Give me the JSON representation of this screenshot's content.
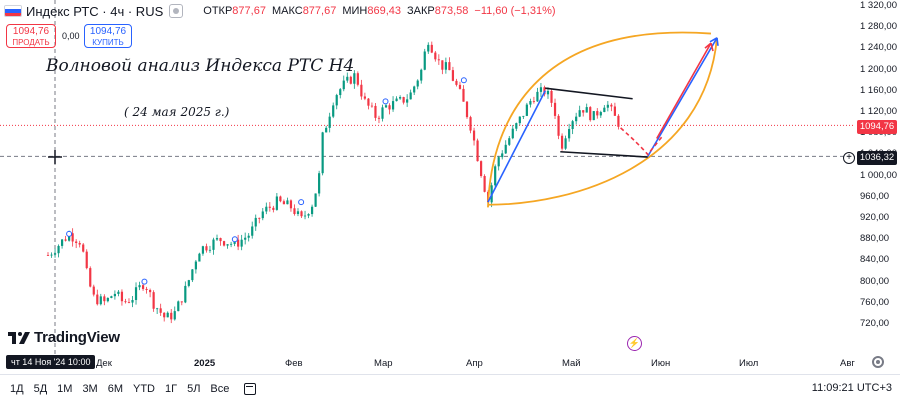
{
  "header": {
    "symbol": "Индекс РТС · 4ч · RUS",
    "open_label": "ОТКР",
    "open_value": "877,67",
    "high_label": "МАКС",
    "high_value": "877,67",
    "low_label": "МИН",
    "low_value": "869,43",
    "close_label": "ЗАКР",
    "close_value": "873,58",
    "change": "−11,60 (−1,31%)",
    "flag_colors": [
      "#ffffff",
      "#2962ff",
      "#f23645"
    ]
  },
  "trade": {
    "sell_price": "1094,76",
    "sell_label": "ПРОДАТЬ",
    "spread": "0,00",
    "buy_price": "1094,76",
    "buy_label": "КУПИТЬ"
  },
  "annotations": {
    "title": "Волновой анализ Индекса РТС Н4",
    "date": "( 24 мая 2025 г.)"
  },
  "logo": {
    "text": "TradingView",
    "icon": "tradingview-logo-icon"
  },
  "price_axis": {
    "ticks": [
      "1 320,00",
      "1 280,00",
      "1 240,00",
      "1 200,00",
      "1 160,00",
      "1 120,00",
      "1 080,00",
      "1 040,00",
      "1 000,00",
      "960,00",
      "920,00",
      "880,00",
      "840,00",
      "800,00",
      "760,00",
      "720,00"
    ],
    "last_price": "1094,76",
    "cursor_price": "1036,32"
  },
  "time_axis": {
    "cursor_label": "чт 14 Ноя '24   10:00",
    "ticks": [
      {
        "label": "Дек",
        "bold": false
      },
      {
        "label": "2025",
        "bold": true
      },
      {
        "label": "Фев",
        "bold": false
      },
      {
        "label": "Мар",
        "bold": false
      },
      {
        "label": "Апр",
        "bold": false
      },
      {
        "label": "Май",
        "bold": false
      },
      {
        "label": "Июн",
        "bold": false
      },
      {
        "label": "Июл",
        "bold": false
      },
      {
        "label": "Авг",
        "bold": false
      }
    ]
  },
  "toolbar": {
    "timeframes": [
      "1Д",
      "5Д",
      "1М",
      "3М",
      "6М",
      "YTD",
      "1Г",
      "5Л",
      "Все"
    ],
    "clock": "11:09:21 UTC+3"
  },
  "colors": {
    "up": "#089981",
    "down": "#f23645",
    "channel": "#f5a623",
    "projection_blue": "#2962ff"
  },
  "chart_data": {
    "type": "candlestick",
    "title": "",
    "y_range": [
      700,
      1330
    ],
    "y_unit": "points",
    "close_path": [
      {
        "x": "2024-11-14",
        "y": 850
      },
      {
        "x": "2024-11-18",
        "y": 872
      },
      {
        "x": "2024-11-21",
        "y": 890
      },
      {
        "x": "2024-11-25",
        "y": 875
      },
      {
        "x": "2024-11-27",
        "y": 810
      },
      {
        "x": "2024-11-29",
        "y": 770
      },
      {
        "x": "2024-12-03",
        "y": 760
      },
      {
        "x": "2024-12-06",
        "y": 780
      },
      {
        "x": "2024-12-09",
        "y": 760
      },
      {
        "x": "2024-12-12",
        "y": 770
      },
      {
        "x": "2024-12-16",
        "y": 800
      },
      {
        "x": "2024-12-19",
        "y": 760
      },
      {
        "x": "2024-12-23",
        "y": 730
      },
      {
        "x": "2024-12-26",
        "y": 740
      },
      {
        "x": "2024-12-30",
        "y": 790
      },
      {
        "x": "2025-01-03",
        "y": 860
      },
      {
        "x": "2025-01-10",
        "y": 880
      },
      {
        "x": "2025-01-15",
        "y": 870
      },
      {
        "x": "2025-01-20",
        "y": 890
      },
      {
        "x": "2025-01-24",
        "y": 930
      },
      {
        "x": "2025-01-29",
        "y": 950
      },
      {
        "x": "2025-02-03",
        "y": 940
      },
      {
        "x": "2025-02-06",
        "y": 915
      },
      {
        "x": "2025-02-10",
        "y": 950
      },
      {
        "x": "2025-02-12",
        "y": 1000
      },
      {
        "x": "2025-02-13",
        "y": 1070
      },
      {
        "x": "2025-02-17",
        "y": 1150
      },
      {
        "x": "2025-02-20",
        "y": 1170
      },
      {
        "x": "2025-02-24",
        "y": 1190
      },
      {
        "x": "2025-02-27",
        "y": 1140
      },
      {
        "x": "2025-03-03",
        "y": 1110
      },
      {
        "x": "2025-03-06",
        "y": 1130
      },
      {
        "x": "2025-03-11",
        "y": 1140
      },
      {
        "x": "2025-03-14",
        "y": 1150
      },
      {
        "x": "2025-03-18",
        "y": 1200
      },
      {
        "x": "2025-03-20",
        "y": 1260
      },
      {
        "x": "2025-03-24",
        "y": 1210
      },
      {
        "x": "2025-03-27",
        "y": 1200
      },
      {
        "x": "2025-03-31",
        "y": 1150
      },
      {
        "x": "2025-04-03",
        "y": 1100
      },
      {
        "x": "2025-04-07",
        "y": 1000
      },
      {
        "x": "2025-04-09",
        "y": 950
      },
      {
        "x": "2025-04-12",
        "y": 1030
      },
      {
        "x": "2025-04-16",
        "y": 1070
      },
      {
        "x": "2025-04-20",
        "y": 1110
      },
      {
        "x": "2025-04-24",
        "y": 1150
      },
      {
        "x": "2025-04-28",
        "y": 1160
      },
      {
        "x": "2025-05-01",
        "y": 1130
      },
      {
        "x": "2025-05-03",
        "y": 1050
      },
      {
        "x": "2025-05-06",
        "y": 1100
      },
      {
        "x": "2025-05-10",
        "y": 1130
      },
      {
        "x": "2025-05-14",
        "y": 1110
      },
      {
        "x": "2025-05-18",
        "y": 1140
      },
      {
        "x": "2025-05-21",
        "y": 1110
      },
      {
        "x": "2025-05-23",
        "y": 1094.76
      }
    ],
    "drawings": [
      {
        "kind": "orange-channel",
        "label": ""
      },
      {
        "kind": "triangle-upper",
        "from": {
          "x": "2025-04-28",
          "y": 1165
        },
        "to": {
          "x": "2025-05-27",
          "y": 1145
        }
      },
      {
        "kind": "triangle-lower",
        "from": {
          "x": "2025-05-03",
          "y": 1045
        },
        "to": {
          "x": "2025-06-01",
          "y": 1035
        }
      },
      {
        "kind": "blue-line",
        "from": {
          "x": "2025-04-09",
          "y": 950
        },
        "to": {
          "x": "2025-04-28",
          "y": 1160
        }
      },
      {
        "kind": "blue-arrow",
        "from": {
          "x": "2025-06-01",
          "y": 1036
        },
        "to": {
          "x": "2025-06-24",
          "y": 1260
        }
      },
      {
        "kind": "red-arrow",
        "from": {
          "x": "2025-06-04",
          "y": 1070
        },
        "to": {
          "x": "2025-06-22",
          "y": 1250
        }
      }
    ]
  }
}
